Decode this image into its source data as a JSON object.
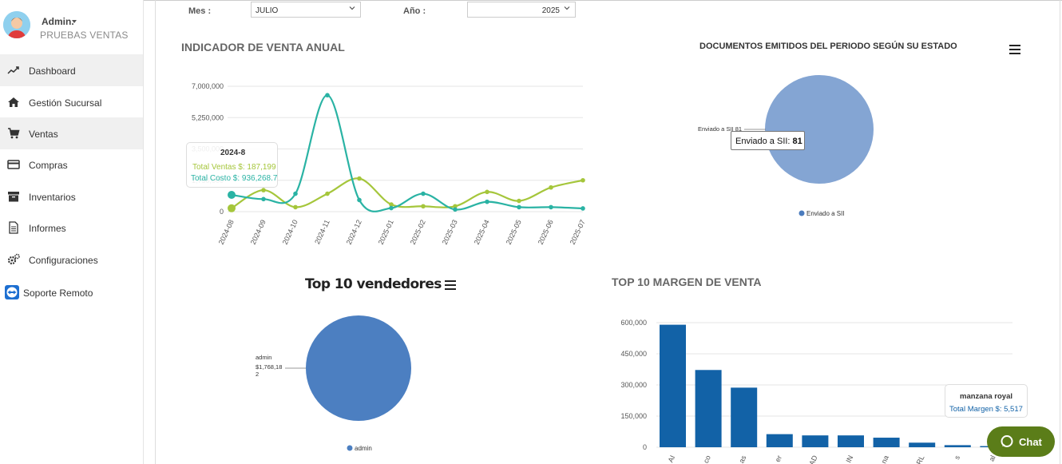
{
  "user": {
    "name": "Admin.",
    "company": "PRUEBAS VENTAS"
  },
  "sidebar": {
    "items": [
      {
        "label": "Dashboard",
        "icon": "trend-line-icon"
      },
      {
        "label": "Gestión Sucursal",
        "icon": "home-icon"
      },
      {
        "label": "Ventas",
        "icon": "cart-icon"
      },
      {
        "label": "Compras",
        "icon": "credit-card-icon"
      },
      {
        "label": "Inventarios",
        "icon": "archive-box-icon"
      },
      {
        "label": "Informes",
        "icon": "document-icon"
      },
      {
        "label": "Configuraciones",
        "icon": "gears-icon"
      },
      {
        "label": "Soporte Remoto",
        "icon": "teamviewer-icon"
      }
    ]
  },
  "filters": {
    "mes_label": "Mes :",
    "mes_value": "JULIO",
    "anio_label": "Año :",
    "anio_value": "2025"
  },
  "colors": {
    "teal": "#2ab3a4",
    "green": "#a5c63b",
    "blue_pie": "#84a5d3",
    "blue_bar": "#1262a7",
    "chat": "#5b7d19"
  },
  "annual_sales": {
    "title": "INDICADOR DE VENTA ANUAL",
    "tooltip": {
      "period": "2024-8",
      "ventas": "Total Ventas $: 187,199",
      "costo": "Total Costo $: 936,268.7"
    }
  },
  "documents": {
    "title": "DOCUMENTOS EMITIDOS DEL PERIODO SEGÚN SU ESTADO",
    "slice_label": "Enviado a SII 81",
    "tooltip_label": "Enviado a SII: ",
    "tooltip_value": "81",
    "legend": "Enviado a SII"
  },
  "top_sellers": {
    "title": "Top 10 vendedores",
    "slice_label_1": "admin",
    "slice_label_2": "$1,768,18",
    "slice_label_3": "2",
    "legend": "admin"
  },
  "margin": {
    "title": "TOP 10 MARGEN DE VENTA",
    "tooltip_name": "manzana royal",
    "tooltip_value": "Total Margen $: 5,517"
  },
  "chat": {
    "label": "Chat"
  },
  "chart_data": [
    {
      "type": "line",
      "title": "INDICADOR DE VENTA ANUAL",
      "x": [
        "2024-08",
        "2024-09",
        "2024-10",
        "2024-11",
        "2024-12",
        "2025-01",
        "2025-02",
        "2025-03",
        "2025-04",
        "2025-05",
        "2025-06",
        "2025-07"
      ],
      "yticks": [
        "0",
        "1,750,000",
        "3,500,000",
        "5,250,000",
        "7,000,000"
      ],
      "ylim": [
        0,
        7000000
      ],
      "series": [
        {
          "name": "Total Ventas $",
          "color": "#a5c63b",
          "values": [
            187199,
            1200000,
            250000,
            1000000,
            1850000,
            400000,
            300000,
            300000,
            1100000,
            600000,
            1350000,
            1750000
          ]
        },
        {
          "name": "Total Costo $",
          "color": "#2ab3a4",
          "values": [
            936268.7,
            700000,
            1000000,
            6500000,
            650000,
            200000,
            1000000,
            120000,
            550000,
            250000,
            250000,
            180000
          ]
        }
      ]
    },
    {
      "type": "pie",
      "title": "DOCUMENTOS EMITIDOS DEL PERIODO SEGÚN SU ESTADO",
      "slices": [
        {
          "label": "Enviado a SII",
          "value": 81
        }
      ]
    },
    {
      "type": "pie",
      "title": "Top 10 vendedores",
      "slices": [
        {
          "label": "admin",
          "value": 1768182
        }
      ]
    },
    {
      "type": "bar",
      "title": "TOP 10 MARGEN DE VENTA",
      "categories": [
        "AI",
        "co",
        "as",
        "er",
        "AD",
        "IN",
        "na",
        "RL",
        "s",
        "al"
      ],
      "values": [
        590000,
        372000,
        287000,
        63000,
        57000,
        57000,
        46000,
        22000,
        10000,
        5517
      ],
      "yticks": [
        "0",
        "150,000",
        "300,000",
        "450,000",
        "600,000"
      ],
      "ylim": [
        0,
        600000
      ]
    }
  ]
}
